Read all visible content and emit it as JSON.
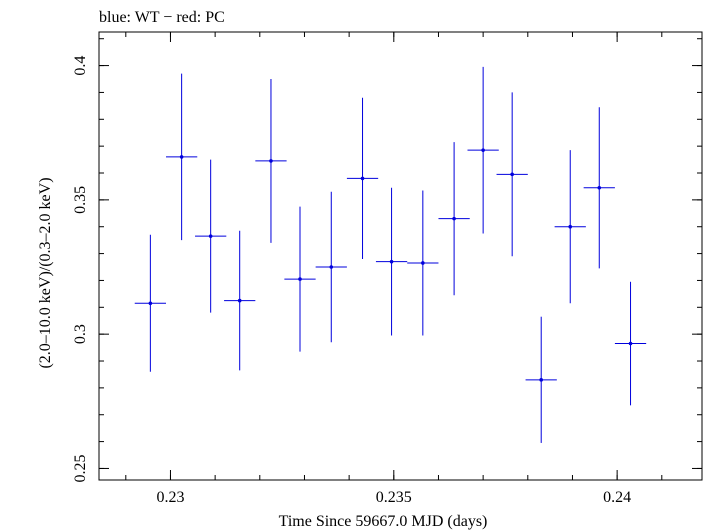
{
  "chart_data": {
    "type": "scatter",
    "title": "blue: WT − red: PC",
    "xlabel": "Time Since 59667.0 MJD (days)",
    "ylabel": "(2.0–10.0 keV)/(0.3–2.0 keV)",
    "xlim": [
      0.2284,
      0.2419
    ],
    "ylim": [
      0.2457,
      0.4125
    ],
    "xticks": [
      0.23,
      0.235,
      0.24
    ],
    "xtick_labels": [
      "0.23",
      "0.235",
      "0.24"
    ],
    "yticks": [
      0.25,
      0.3,
      0.35,
      0.4
    ],
    "ytick_labels": [
      "0.25",
      "0.3",
      "0.35",
      "0.4"
    ],
    "grid": false,
    "series": [
      {
        "color": "#0000dd",
        "points": [
          {
            "x": 0.22955,
            "y": 0.3115,
            "xerr": 0.00035,
            "yerr_low": 0.0255,
            "yerr_high": 0.0255
          },
          {
            "x": 0.23025,
            "y": 0.366,
            "xerr": 0.00035,
            "yerr_low": 0.031,
            "yerr_high": 0.031
          },
          {
            "x": 0.2309,
            "y": 0.3365,
            "xerr": 0.00035,
            "yerr_low": 0.0285,
            "yerr_high": 0.0285
          },
          {
            "x": 0.23155,
            "y": 0.3125,
            "xerr": 0.00035,
            "yerr_low": 0.026,
            "yerr_high": 0.026
          },
          {
            "x": 0.23225,
            "y": 0.3645,
            "xerr": 0.00035,
            "yerr_low": 0.0305,
            "yerr_high": 0.0305
          },
          {
            "x": 0.2329,
            "y": 0.3205,
            "xerr": 0.00035,
            "yerr_low": 0.027,
            "yerr_high": 0.027
          },
          {
            "x": 0.2336,
            "y": 0.325,
            "xerr": 0.00035,
            "yerr_low": 0.028,
            "yerr_high": 0.028
          },
          {
            "x": 0.2343,
            "y": 0.358,
            "xerr": 0.00035,
            "yerr_low": 0.03,
            "yerr_high": 0.03
          },
          {
            "x": 0.23495,
            "y": 0.327,
            "xerr": 0.00035,
            "yerr_low": 0.0275,
            "yerr_high": 0.0275
          },
          {
            "x": 0.23565,
            "y": 0.3265,
            "xerr": 0.00035,
            "yerr_low": 0.027,
            "yerr_high": 0.027
          },
          {
            "x": 0.23635,
            "y": 0.343,
            "xerr": 0.00035,
            "yerr_low": 0.0285,
            "yerr_high": 0.0285
          },
          {
            "x": 0.237,
            "y": 0.3685,
            "xerr": 0.00035,
            "yerr_low": 0.031,
            "yerr_high": 0.031
          },
          {
            "x": 0.23765,
            "y": 0.3595,
            "xerr": 0.00035,
            "yerr_low": 0.0305,
            "yerr_high": 0.0305
          },
          {
            "x": 0.2383,
            "y": 0.283,
            "xerr": 0.00035,
            "yerr_low": 0.0235,
            "yerr_high": 0.0235
          },
          {
            "x": 0.23895,
            "y": 0.34,
            "xerr": 0.00035,
            "yerr_low": 0.0285,
            "yerr_high": 0.0285
          },
          {
            "x": 0.2396,
            "y": 0.3545,
            "xerr": 0.00035,
            "yerr_low": 0.03,
            "yerr_high": 0.03
          },
          {
            "x": 0.2403,
            "y": 0.2965,
            "xerr": 0.00035,
            "yerr_low": 0.023,
            "yerr_high": 0.023
          }
        ]
      }
    ]
  }
}
